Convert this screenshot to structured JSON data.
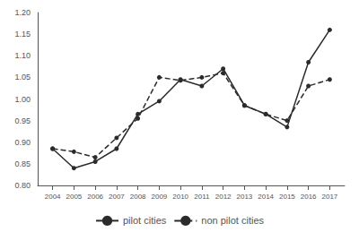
{
  "chart_data": {
    "type": "line",
    "x": [
      2004,
      2005,
      2006,
      2007,
      2008,
      2009,
      2010,
      2011,
      2012,
      2013,
      2014,
      2015,
      2016,
      2017
    ],
    "series": [
      {
        "name": "pilot cities",
        "color": "#2b2b2b",
        "line_style": "solid",
        "marker": "circle",
        "values": [
          0.885,
          0.84,
          0.855,
          0.885,
          0.965,
          0.995,
          1.045,
          1.03,
          1.07,
          0.985,
          0.965,
          0.935,
          1.085,
          1.16
        ]
      },
      {
        "name": "non pilot cities",
        "color": "#2b2b2b",
        "line_style": "dashed",
        "marker": "circle",
        "values": [
          0.885,
          0.878,
          0.865,
          0.91,
          0.955,
          1.05,
          1.043,
          1.05,
          1.06,
          0.985,
          0.965,
          0.95,
          1.03,
          1.045
        ]
      }
    ],
    "xlim": [
      2003.3,
      2017.7
    ],
    "xticks": [
      2004,
      2005,
      2006,
      2007,
      2008,
      2009,
      2010,
      2011,
      2012,
      2013,
      2014,
      2015,
      2016,
      2017
    ],
    "ylim": [
      0.8,
      1.2
    ],
    "yticks": [
      {
        "value": 0.8,
        "label": "0.80"
      },
      0.85,
      {
        "value": 0.9,
        "label": "0.90"
      },
      0.95,
      {
        "value": 1.0,
        "label": "1.00"
      },
      1.05,
      {
        "value": 1.1,
        "label": "1.10"
      },
      1.15,
      {
        "value": 1.2,
        "label": "1.20"
      }
    ],
    "grid": false,
    "legend": "bottom"
  }
}
